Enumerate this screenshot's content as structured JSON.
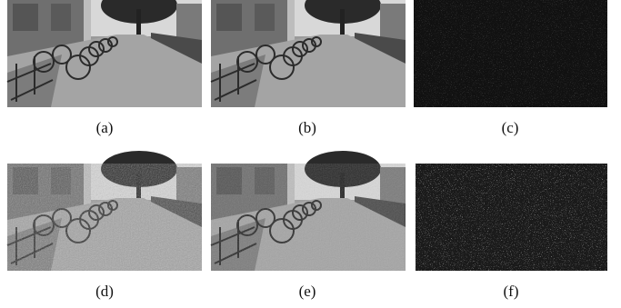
{
  "figure": {
    "panels": [
      {
        "caption": "(a)"
      },
      {
        "caption": "(b)"
      },
      {
        "caption": "(c)"
      },
      {
        "caption": "(d)"
      },
      {
        "caption": "(e)"
      },
      {
        "caption": "(f)"
      }
    ]
  }
}
